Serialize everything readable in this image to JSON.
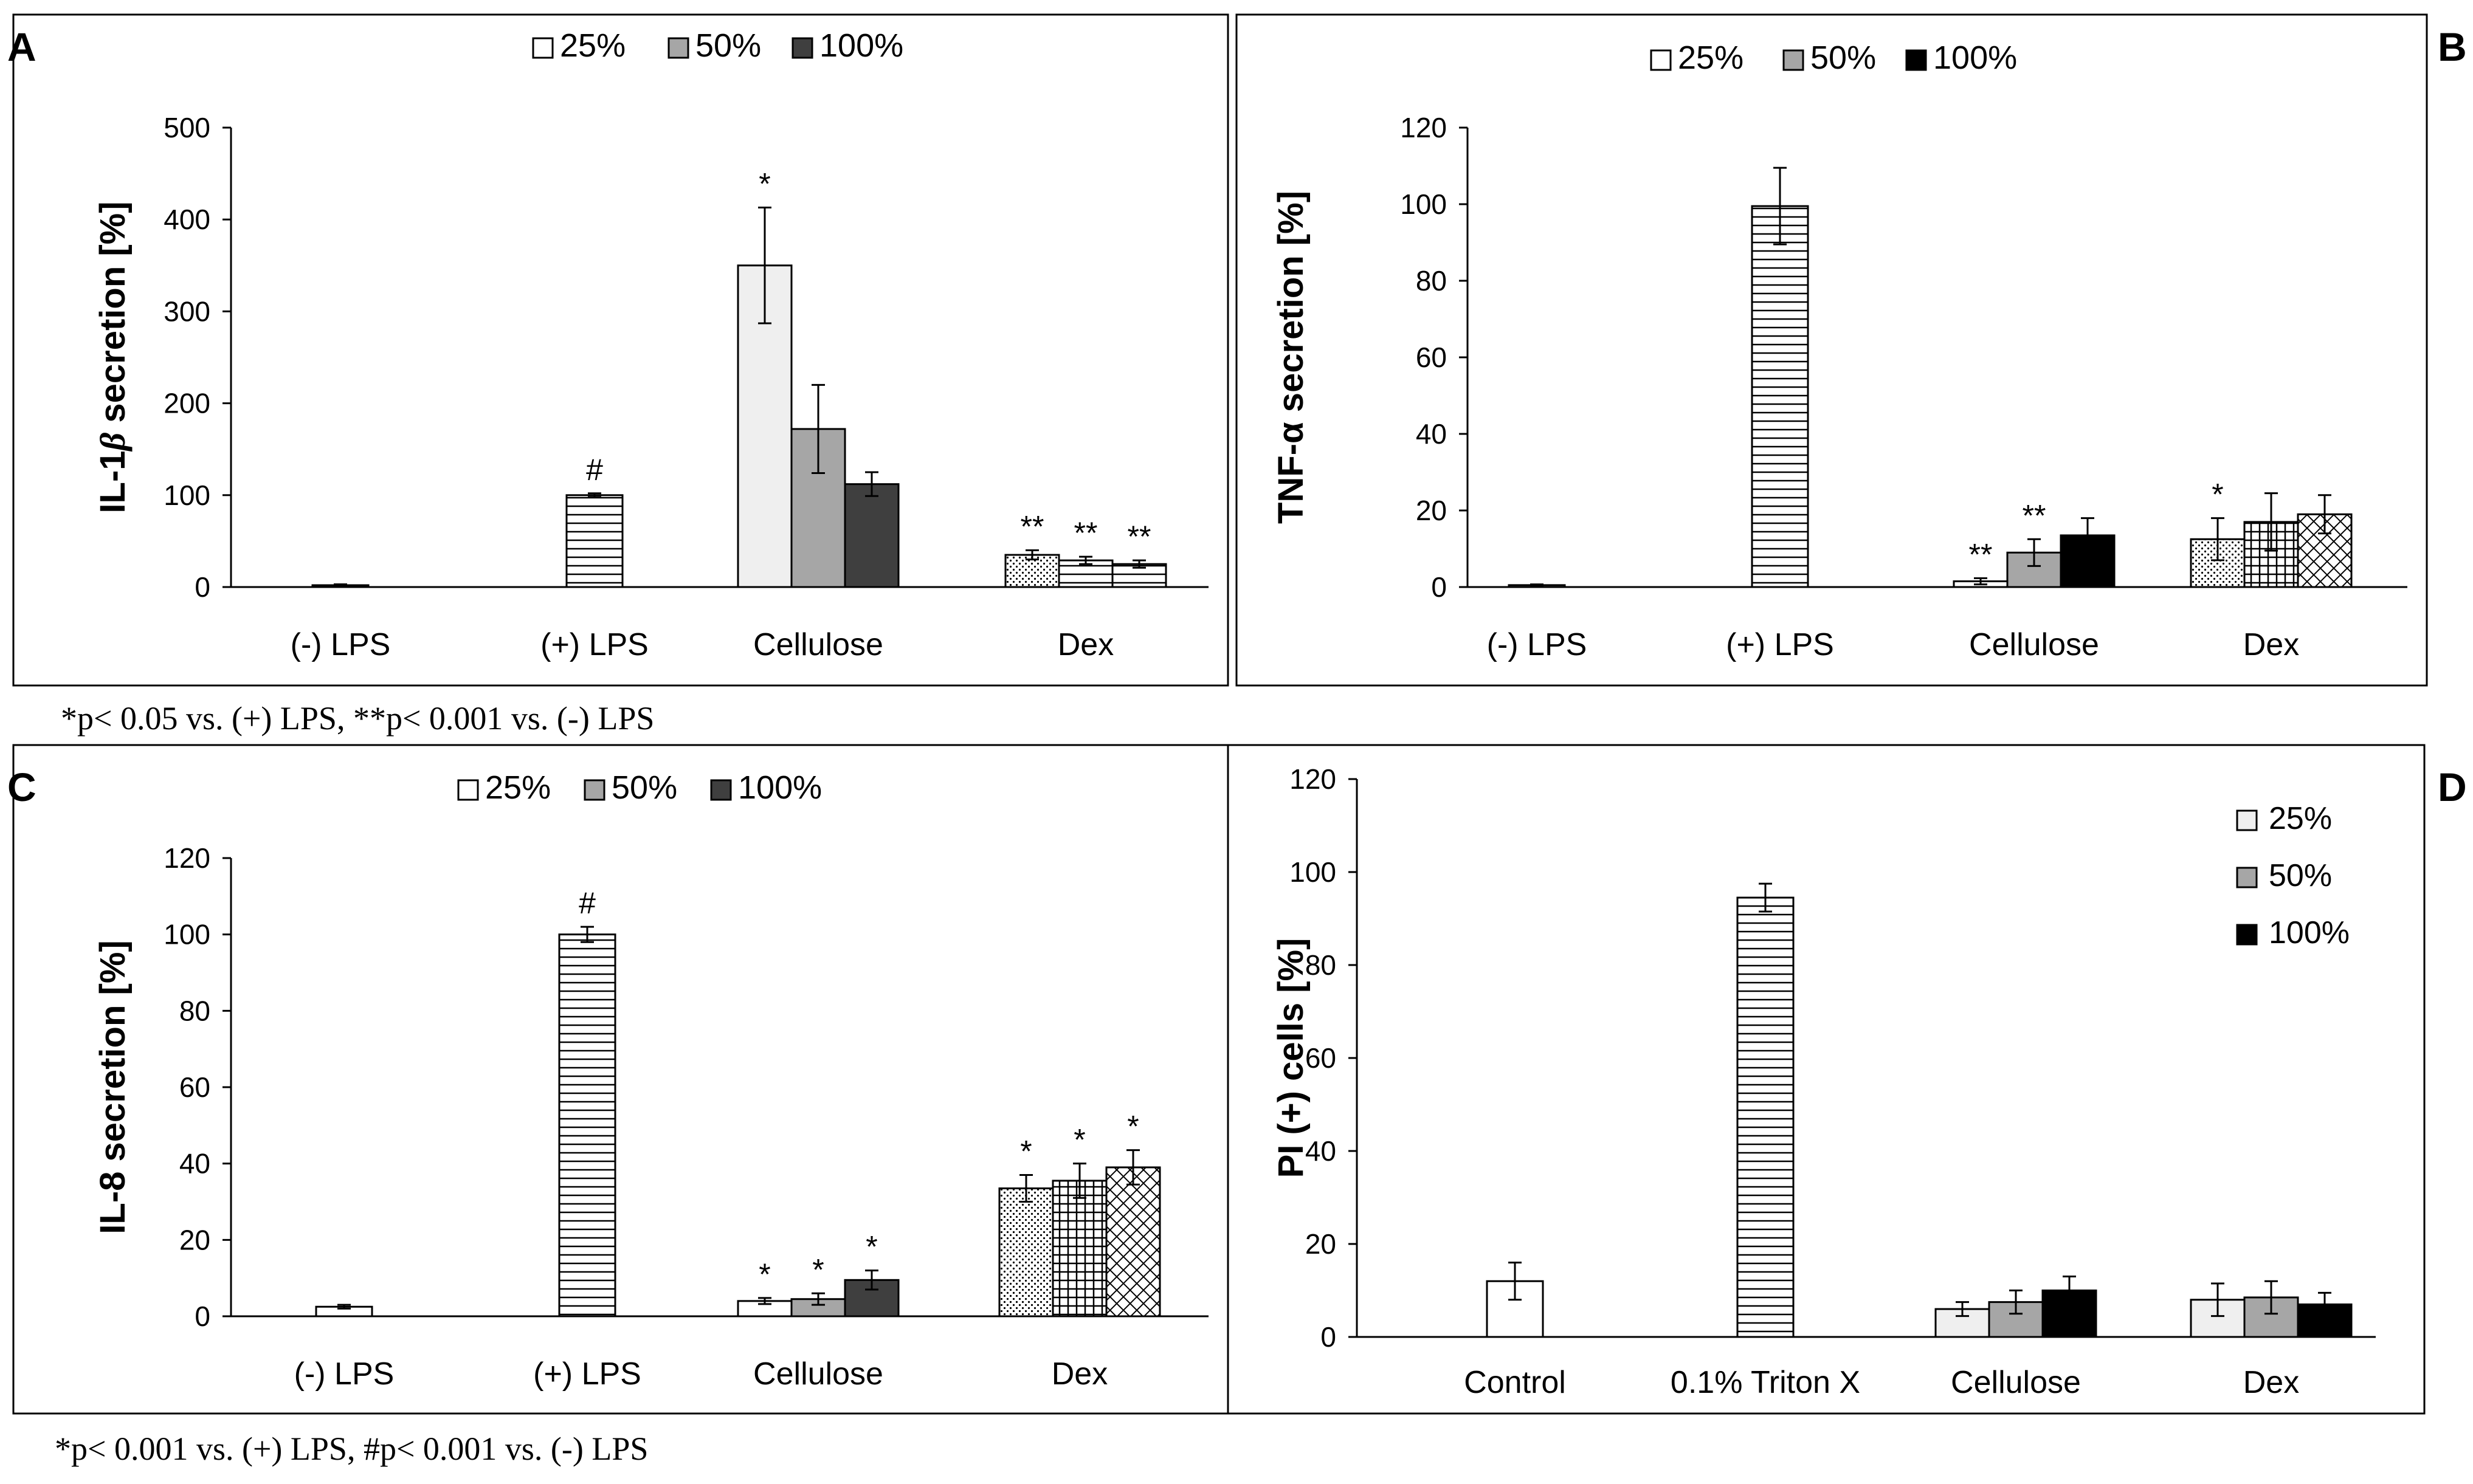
{
  "footnotes": {
    "top": "*p< 0.05 vs. (+) LPS, **p< 0.001 vs. (-) LPS",
    "bottom": "*p< 0.001  vs. (+) LPS, #p< 0.001 vs. (-) LPS"
  },
  "chart_data": [
    {
      "panel": "A",
      "type": "bar",
      "title": "",
      "ylabel": "IL-1β secretion [%]",
      "ylabel_main": "IL-1",
      "ylabel_greek": "β",
      "ylabel_rest": " secretion [%]",
      "ylim": [
        0,
        500
      ],
      "yticks": [
        0,
        100,
        200,
        300,
        400,
        500
      ],
      "legend": {
        "position": "top-center",
        "entries": [
          "25%",
          "50%",
          "100%"
        ]
      },
      "categories": [
        "(-) LPS",
        "(+) LPS",
        "Cellulose",
        "Dex"
      ],
      "bars": [
        {
          "category": "(-) LPS",
          "series": "single",
          "value": 2,
          "err": 1,
          "fill": "plain",
          "label": ""
        },
        {
          "category": "(+) LPS",
          "series": "single",
          "value": 100,
          "err": 2,
          "fill": "hlines",
          "label": "#"
        },
        {
          "category": "Cellulose",
          "series": "25%",
          "value": 350,
          "err": 63,
          "fill": "lightgray",
          "label": "*"
        },
        {
          "category": "Cellulose",
          "series": "50%",
          "value": 172,
          "err": 48,
          "fill": "midgray",
          "label": ""
        },
        {
          "category": "Cellulose",
          "series": "100%",
          "value": 112,
          "err": 13,
          "fill": "darkgray",
          "label": ""
        },
        {
          "category": "Dex",
          "series": "25%",
          "value": 35,
          "err": 5,
          "fill": "dots",
          "label": "**"
        },
        {
          "category": "Dex",
          "series": "50%",
          "value": 29,
          "err": 4,
          "fill": "hlines",
          "label": "**"
        },
        {
          "category": "Dex",
          "series": "100%",
          "value": 25,
          "err": 4,
          "fill": "hlines",
          "label": "**"
        }
      ]
    },
    {
      "panel": "B",
      "type": "bar",
      "title": "",
      "ylabel": "TNF-α secretion [%]",
      "ylim": [
        0,
        120
      ],
      "yticks": [
        0,
        20,
        40,
        60,
        80,
        100,
        120
      ],
      "legend": {
        "position": "top-center",
        "entries": [
          "25%",
          "50%",
          "100%"
        ]
      },
      "categories": [
        "(-) LPS",
        "(+) LPS",
        "Cellulose",
        "Dex"
      ],
      "bars": [
        {
          "category": "(-) LPS",
          "series": "single",
          "value": 0.5,
          "err": 0.2,
          "fill": "plain",
          "label": ""
        },
        {
          "category": "(+) LPS",
          "series": "single",
          "value": 99.5,
          "err": 10,
          "fill": "hlines",
          "label": ""
        },
        {
          "category": "Cellulose",
          "series": "25%",
          "value": 1.5,
          "err": 0.8,
          "fill": "plain",
          "label": "**"
        },
        {
          "category": "Cellulose",
          "series": "50%",
          "value": 9,
          "err": 3.5,
          "fill": "midgray",
          "label": "**"
        },
        {
          "category": "Cellulose",
          "series": "100%",
          "value": 13.5,
          "err": 4.5,
          "fill": "black",
          "label": ""
        },
        {
          "category": "Dex",
          "series": "25%",
          "value": 12.5,
          "err": 5.5,
          "fill": "dots",
          "label": "*"
        },
        {
          "category": "Dex",
          "series": "50%",
          "value": 17,
          "err": 7.5,
          "fill": "grid",
          "label": ""
        },
        {
          "category": "Dex",
          "series": "100%",
          "value": 19,
          "err": 5,
          "fill": "xhatch",
          "label": ""
        }
      ]
    },
    {
      "panel": "C",
      "type": "bar",
      "title": "",
      "ylabel": "IL-8 secretion [%]",
      "ylim": [
        0,
        120
      ],
      "yticks": [
        0,
        20,
        40,
        60,
        80,
        100,
        120
      ],
      "legend": {
        "position": "top-center",
        "entries": [
          "25%",
          "50%",
          "100%"
        ]
      },
      "categories": [
        "(-) LPS",
        "(+) LPS",
        "Cellulose",
        "Dex"
      ],
      "bars": [
        {
          "category": "(-) LPS",
          "series": "single",
          "value": 2.5,
          "err": 0.5,
          "fill": "plain",
          "label": ""
        },
        {
          "category": "(+) LPS",
          "series": "single",
          "value": 100,
          "err": 2,
          "fill": "hlines",
          "label": "#"
        },
        {
          "category": "Cellulose",
          "series": "25%",
          "value": 4,
          "err": 0.8,
          "fill": "plain",
          "label": "*"
        },
        {
          "category": "Cellulose",
          "series": "50%",
          "value": 4.5,
          "err": 1.5,
          "fill": "midgray",
          "label": "*"
        },
        {
          "category": "Cellulose",
          "series": "100%",
          "value": 9.5,
          "err": 2.5,
          "fill": "darkgray",
          "label": "*"
        },
        {
          "category": "Dex",
          "series": "25%",
          "value": 33.5,
          "err": 3.5,
          "fill": "dots",
          "label": "*"
        },
        {
          "category": "Dex",
          "series": "50%",
          "value": 35.5,
          "err": 4.5,
          "fill": "grid",
          "label": "*"
        },
        {
          "category": "Dex",
          "series": "100%",
          "value": 39,
          "err": 4.5,
          "fill": "xhatch",
          "label": "*"
        }
      ]
    },
    {
      "panel": "D",
      "type": "bar",
      "title": "",
      "ylabel": "PI (+)  cells [%]",
      "ylim": [
        0,
        120
      ],
      "yticks": [
        0,
        20,
        40,
        60,
        80,
        100,
        120
      ],
      "legend": {
        "position": "right",
        "entries": [
          "25%",
          "50%",
          "100%"
        ]
      },
      "categories": [
        "Control",
        "0.1% Triton X",
        "Cellulose",
        "Dex"
      ],
      "bars": [
        {
          "category": "Control",
          "series": "single",
          "value": 12,
          "err": 4,
          "fill": "plain",
          "label": ""
        },
        {
          "category": "0.1% Triton X",
          "series": "single",
          "value": 94.5,
          "err": 3,
          "fill": "hlines",
          "label": ""
        },
        {
          "category": "Cellulose",
          "series": "25%",
          "value": 6,
          "err": 1.5,
          "fill": "lightgray",
          "label": ""
        },
        {
          "category": "Cellulose",
          "series": "50%",
          "value": 7.5,
          "err": 2.5,
          "fill": "midgray",
          "label": ""
        },
        {
          "category": "Cellulose",
          "series": "100%",
          "value": 10,
          "err": 3,
          "fill": "black",
          "label": ""
        },
        {
          "category": "Dex",
          "series": "25%",
          "value": 8,
          "err": 3.5,
          "fill": "lightgray",
          "label": ""
        },
        {
          "category": "Dex",
          "series": "50%",
          "value": 8.5,
          "err": 3.5,
          "fill": "midgray",
          "label": ""
        },
        {
          "category": "Dex",
          "series": "100%",
          "value": 7,
          "err": 2.5,
          "fill": "black",
          "label": ""
        }
      ]
    }
  ]
}
